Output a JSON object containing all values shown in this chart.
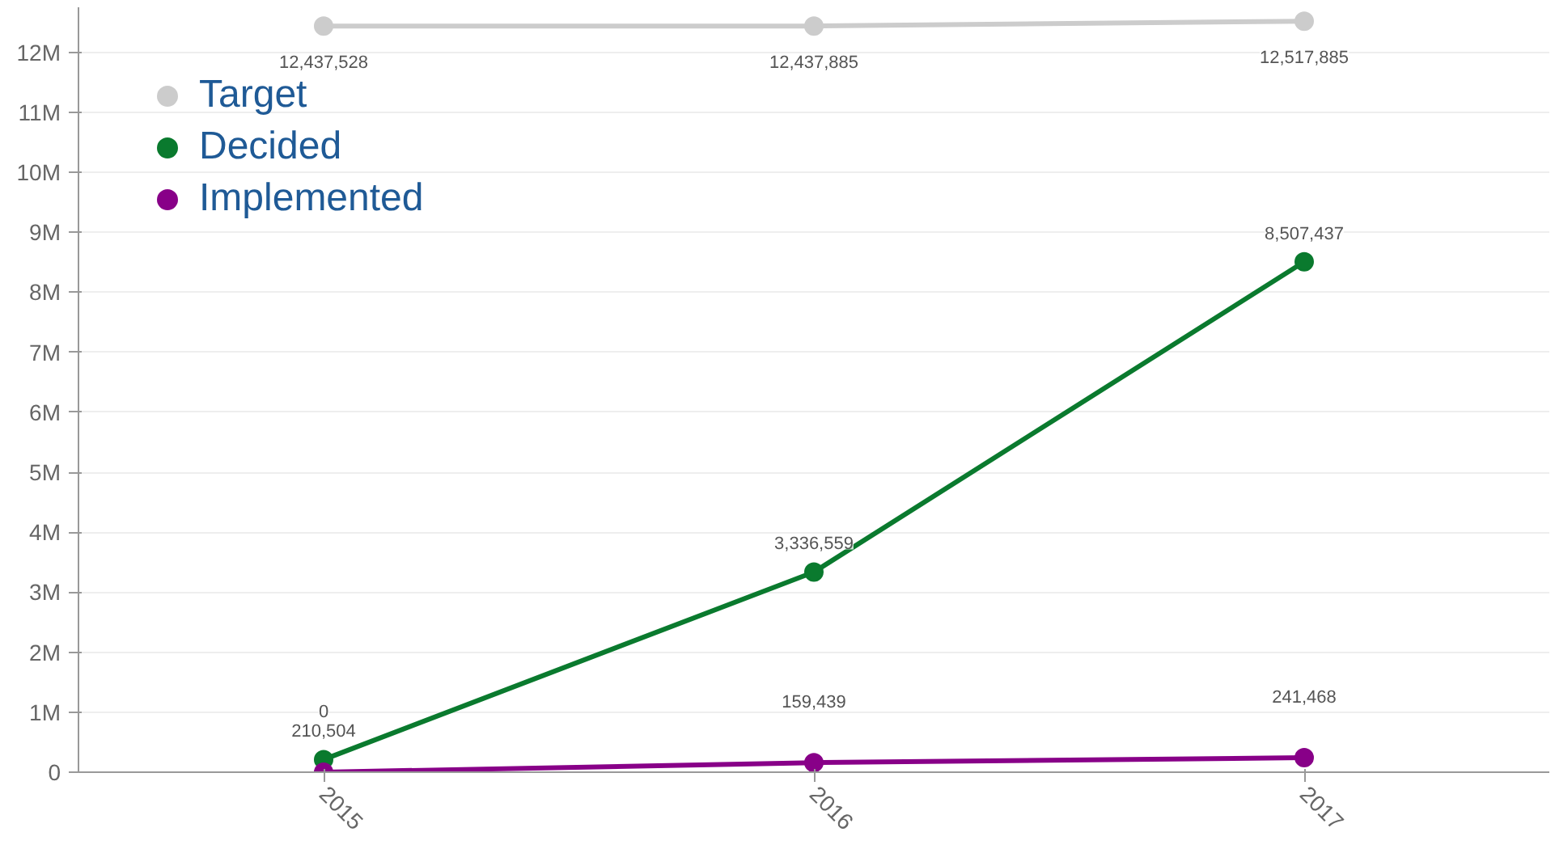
{
  "chart_data": {
    "type": "line",
    "x": [
      2015,
      2016,
      2017
    ],
    "xlim": [
      2014.5,
      2017.5
    ],
    "xticks": [
      2015,
      2016,
      2017
    ],
    "ylim": [
      0,
      12750000
    ],
    "yticks": [
      {
        "value": 0,
        "label": "0"
      },
      {
        "value": 1000000,
        "label": "1M"
      },
      {
        "value": 2000000,
        "label": "2M"
      },
      {
        "value": 3000000,
        "label": "3M"
      },
      {
        "value": 4000000,
        "label": "4M"
      },
      {
        "value": 5000000,
        "label": "5M"
      },
      {
        "value": 6000000,
        "label": "6M"
      },
      {
        "value": 7000000,
        "label": "7M"
      },
      {
        "value": 8000000,
        "label": "8M"
      },
      {
        "value": 9000000,
        "label": "9M"
      },
      {
        "value": 10000000,
        "label": "10M"
      },
      {
        "value": 11000000,
        "label": "11M"
      },
      {
        "value": 12000000,
        "label": "12M"
      }
    ],
    "series": [
      {
        "name": "Target",
        "color": "#cccccc",
        "values": [
          12437528,
          12437885,
          12517885
        ],
        "value_labels": [
          "12,437,528",
          "12,437,885",
          "12,517,885"
        ]
      },
      {
        "name": "Decided",
        "color": "#0a7a2e",
        "values": [
          210504,
          3336559,
          8507437
        ],
        "value_labels": [
          "210,504",
          "3,336,559",
          "8,507,437"
        ]
      },
      {
        "name": "Implemented",
        "color": "#880088",
        "values": [
          0,
          159439,
          241468
        ],
        "value_labels": [
          "0",
          "159,439",
          "241,468"
        ]
      }
    ],
    "grid": "y",
    "legend": "top left",
    "marker": "circle",
    "line_style": "solid"
  }
}
